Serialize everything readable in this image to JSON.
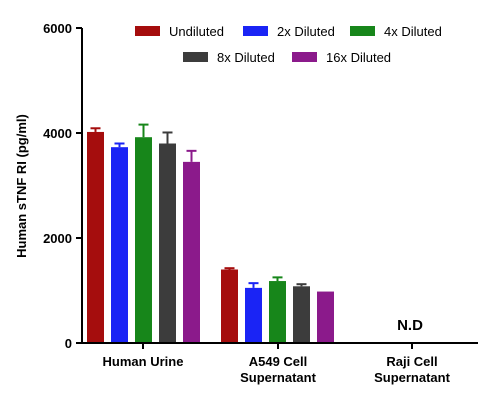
{
  "chart_data": {
    "type": "bar",
    "ylabel": "Human sTNF RI (pg/ml)",
    "xlabel": "",
    "title": "",
    "ylim": [
      0,
      6000
    ],
    "yticks": [
      0,
      2000,
      4000,
      6000
    ],
    "ytick_labels": [
      "0",
      "2000",
      "4000",
      "6000"
    ],
    "grid": false,
    "legend_position": "top",
    "categories": [
      {
        "lines": [
          "Human Urine"
        ]
      },
      {
        "lines": [
          "A549 Cell",
          "Supernatant"
        ]
      },
      {
        "lines": [
          "Raji Cell",
          "Supernatant"
        ]
      }
    ],
    "series": [
      {
        "name": "Undiluted",
        "color": "#a50d0d",
        "values": [
          4020,
          1400,
          null
        ],
        "errors": [
          70,
          25,
          null
        ]
      },
      {
        "name": "2x Diluted",
        "color": "#1a24f5",
        "values": [
          3730,
          1050,
          null
        ],
        "errors": [
          70,
          90,
          null
        ]
      },
      {
        "name": "4x Diluted",
        "color": "#17861a",
        "values": [
          3920,
          1180,
          null
        ],
        "errors": [
          240,
          70,
          null
        ]
      },
      {
        "name": "8x Diluted",
        "color": "#3c3c3c",
        "values": [
          3800,
          1080,
          null
        ],
        "errors": [
          210,
          40,
          null
        ]
      },
      {
        "name": "16x Diluted",
        "color": "#8b1a8b",
        "values": [
          3450,
          980,
          null
        ],
        "errors": [
          210,
          0,
          null
        ]
      }
    ],
    "annotations": [
      {
        "category_index": 2,
        "text": "N.D"
      }
    ]
  }
}
